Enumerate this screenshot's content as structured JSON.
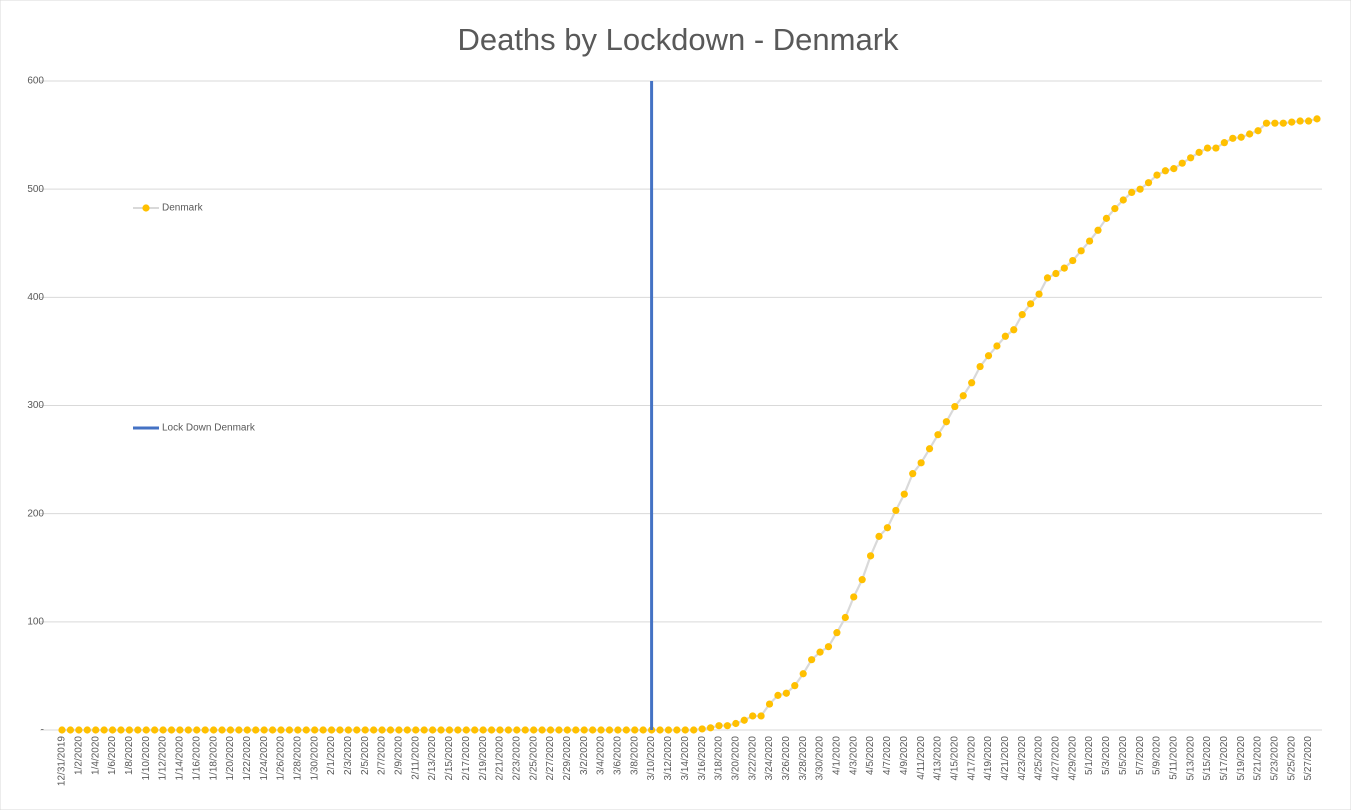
{
  "chart_data": {
    "type": "line",
    "title": "Deaths by Lockdown - Denmark",
    "categories": [
      "12/31/2019",
      null,
      "1/2/2020",
      null,
      "1/4/2020",
      null,
      "1/6/2020",
      null,
      "1/8/2020",
      null,
      "1/10/2020",
      null,
      "1/12/2020",
      null,
      "1/14/2020",
      null,
      "1/16/2020",
      null,
      "1/18/2020",
      null,
      "1/20/2020",
      null,
      "1/22/2020",
      null,
      "1/24/2020",
      null,
      "1/26/2020",
      null,
      "1/28/2020",
      null,
      "1/30/2020",
      null,
      "2/1/2020",
      null,
      "2/3/2020",
      null,
      "2/5/2020",
      null,
      "2/7/2020",
      null,
      "2/9/2020",
      null,
      "2/11/2020",
      null,
      "2/13/2020",
      null,
      "2/15/2020",
      null,
      "2/17/2020",
      null,
      "2/19/2020",
      null,
      "2/21/2020",
      null,
      "2/23/2020",
      null,
      "2/25/2020",
      null,
      "2/27/2020",
      null,
      "2/29/2020",
      null,
      "3/2/2020",
      null,
      "3/4/2020",
      null,
      "3/6/2020",
      null,
      "3/8/2020",
      null,
      "3/10/2020",
      null,
      "3/12/2020",
      null,
      "3/14/2020",
      null,
      "3/16/2020",
      null,
      "3/18/2020",
      null,
      "3/20/2020",
      null,
      "3/22/2020",
      null,
      "3/24/2020",
      null,
      "3/26/2020",
      null,
      "3/28/2020",
      null,
      "3/30/2020",
      null,
      "4/1/2020",
      null,
      "4/3/2020",
      null,
      "4/5/2020",
      null,
      "4/7/2020",
      null,
      "4/9/2020",
      null,
      "4/11/2020",
      null,
      "4/13/2020",
      null,
      "4/15/2020",
      null,
      "4/17/2020",
      null,
      "4/19/2020",
      null,
      "4/21/2020",
      null,
      "4/23/2020",
      null,
      "4/25/2020",
      null,
      "4/27/2020",
      null,
      "4/29/2020",
      null,
      "5/1/2020",
      null,
      "5/3/2020",
      null,
      "5/5/2020",
      null,
      "5/7/2020",
      null,
      "5/9/2020",
      null,
      "5/11/2020",
      null,
      "5/13/2020",
      null,
      "5/15/2020",
      null,
      "5/17/2020",
      null,
      "5/19/2020",
      null,
      "5/21/2020",
      null,
      "5/23/2020",
      null,
      "5/25/2020",
      null,
      "5/27/2020",
      null
    ],
    "series": [
      {
        "name": "Denmark",
        "color": "#ffc000",
        "line_color": "#d9d9d9",
        "values": [
          0,
          0,
          0,
          0,
          0,
          0,
          0,
          0,
          0,
          0,
          0,
          0,
          0,
          0,
          0,
          0,
          0,
          0,
          0,
          0,
          0,
          0,
          0,
          0,
          0,
          0,
          0,
          0,
          0,
          0,
          0,
          0,
          0,
          0,
          0,
          0,
          0,
          0,
          0,
          0,
          0,
          0,
          0,
          0,
          0,
          0,
          0,
          0,
          0,
          0,
          0,
          0,
          0,
          0,
          0,
          0,
          0,
          0,
          0,
          0,
          0,
          0,
          0,
          0,
          0,
          0,
          0,
          0,
          0,
          0,
          0,
          0,
          0,
          0,
          0,
          0,
          1,
          2,
          4,
          4,
          6,
          9,
          13,
          13,
          24,
          32,
          34,
          41,
          52,
          65,
          72,
          77,
          90,
          104,
          123,
          139,
          161,
          179,
          187,
          203,
          218,
          237,
          247,
          260,
          273,
          285,
          299,
          309,
          321,
          336,
          346,
          355,
          364,
          370,
          384,
          394,
          403,
          418,
          422,
          427,
          434,
          443,
          452,
          462,
          473,
          482,
          490,
          497,
          500,
          506,
          513,
          517,
          519,
          524,
          529,
          534,
          538,
          538,
          543,
          547,
          548,
          551,
          554,
          561,
          561,
          561,
          562,
          563,
          563,
          565
        ]
      },
      {
        "name": "Lock Down Denmark",
        "color": "#4472c4",
        "values": [
          null,
          null,
          null,
          null,
          null,
          null,
          null,
          null,
          null,
          null,
          null,
          null,
          null,
          null,
          null,
          null,
          null,
          null,
          null,
          null,
          null,
          null,
          null,
          null,
          null,
          null,
          null,
          null,
          null,
          null,
          null,
          null,
          null,
          null,
          null,
          null,
          null,
          null,
          null,
          null,
          null,
          null,
          null,
          null,
          null,
          null,
          null,
          null,
          null,
          null,
          null,
          null,
          null,
          null,
          null,
          null,
          null,
          null,
          null,
          null,
          null,
          null,
          null,
          null,
          null,
          null,
          null,
          null,
          null,
          null,
          600,
          null,
          null,
          null,
          null,
          null,
          null,
          null,
          null,
          null,
          null,
          null,
          null,
          null,
          null,
          null,
          null,
          null,
          null,
          null,
          null,
          null,
          null,
          null,
          null,
          null,
          null,
          null,
          null,
          null,
          null,
          null,
          null,
          null,
          null,
          null,
          null,
          null,
          null,
          null,
          null,
          null,
          null,
          null,
          null,
          null,
          null,
          null,
          null,
          null,
          null,
          null,
          null,
          null,
          null,
          null,
          null,
          null,
          null,
          null,
          null,
          null,
          null,
          null,
          null,
          null,
          null,
          null,
          null,
          null,
          null,
          null,
          null,
          null,
          null,
          null,
          null,
          null,
          null,
          null
        ]
      }
    ],
    "ylim": [
      0,
      600
    ],
    "yticks": [
      {
        "value": 0,
        "label": "-"
      },
      100,
      200,
      300,
      400,
      500,
      600
    ],
    "grid": true,
    "legend": "left"
  }
}
